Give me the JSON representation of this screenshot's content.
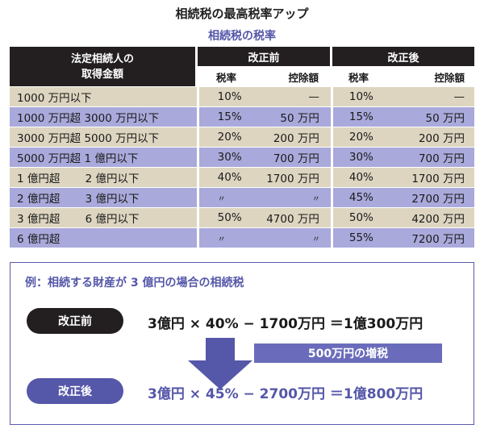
{
  "title": "相続税の最高税率アップ",
  "subtitle": "相続税の税率",
  "table": {
    "header": {
      "col0_line1": "法定相続人の",
      "col0_line2": "取得金額",
      "before_group": "改正前",
      "after_group": "改正後",
      "rate": "税率",
      "deduction": "控除額"
    },
    "rows": [
      {
        "bracket": "1000 万円以下",
        "before_rate": "10%",
        "before_ded": "—",
        "after_rate": "10%",
        "after_ded": "—"
      },
      {
        "bracket": "1000 万円超 3000 万円以下",
        "before_rate": "15%",
        "before_ded": "50 万円",
        "after_rate": "15%",
        "after_ded": "50 万円"
      },
      {
        "bracket": "3000 万円超 5000 万円以下",
        "before_rate": "20%",
        "before_ded": "200 万円",
        "after_rate": "20%",
        "after_ded": "200 万円"
      },
      {
        "bracket": "5000 万円超 1 億円以下",
        "before_rate": "30%",
        "before_ded": "700 万円",
        "after_rate": "30%",
        "after_ded": "700 万円"
      },
      {
        "bracket": "1 億円超　　 2 億円以下",
        "before_rate": "40%",
        "before_ded": "1700 万円",
        "after_rate": "40%",
        "after_ded": "1700 万円"
      },
      {
        "bracket": "2 億円超　　 3 億円以下",
        "before_rate": "〃",
        "before_ded": "〃",
        "after_rate": "45%",
        "after_ded": "2700 万円"
      },
      {
        "bracket": "3 億円超　　 6 億円以下",
        "before_rate": "50%",
        "before_ded": "4700 万円",
        "after_rate": "50%",
        "after_ded": "4200 万円"
      },
      {
        "bracket": "6 億円超",
        "before_rate": "〃",
        "before_ded": "〃",
        "after_rate": "55%",
        "after_ded": "7200 万円"
      }
    ]
  },
  "example": {
    "title": "例：相続する財産が 3 億円の場合の相続税",
    "before_label": "改正前",
    "before_formula": "3億円 × 40% − 1700万円 ＝1億300万円",
    "increase": "500万円の増税",
    "after_label": "改正後",
    "after_formula": "3億円 × 45% − 2700万円 ＝1億800万円"
  },
  "colors": {
    "dark": "#231f20",
    "accent": "#5557a9",
    "row_tan": "#ddd5c0",
    "row_lavender": "#a9a9dc"
  }
}
